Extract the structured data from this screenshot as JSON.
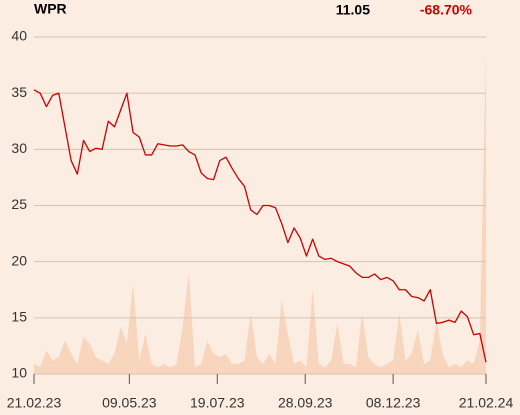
{
  "header": {
    "symbol": "WPR",
    "price": 11.05,
    "change": "-68.70%"
  },
  "chart_data": {
    "type": "line",
    "x": [
      "21.02.23",
      "26.02.23",
      "03.03.23",
      "08.03.23",
      "13.03.23",
      "18.03.23",
      "23.03.23",
      "28.03.23",
      "02.04.23",
      "07.04.23",
      "12.04.23",
      "17.04.23",
      "22.04.23",
      "27.04.23",
      "02.05.23",
      "07.05.23",
      "12.05.23",
      "17.05.23",
      "22.05.23",
      "27.05.23",
      "01.06.23",
      "06.06.23",
      "11.06.23",
      "16.06.23",
      "21.06.23",
      "26.06.23",
      "01.07.23",
      "06.07.23",
      "11.07.23",
      "16.07.23",
      "21.07.23",
      "26.07.23",
      "31.07.23",
      "05.08.23",
      "10.08.23",
      "15.08.23",
      "20.08.23",
      "25.08.23",
      "30.08.23",
      "04.09.23",
      "09.09.23",
      "14.09.23",
      "19.09.23",
      "24.09.23",
      "29.09.23",
      "04.10.23",
      "09.10.23",
      "14.10.23",
      "19.10.23",
      "24.10.23",
      "29.10.23",
      "03.11.23",
      "08.11.23",
      "13.11.23",
      "18.11.23",
      "23.11.23",
      "28.11.23",
      "03.12.23",
      "08.12.23",
      "13.12.23",
      "18.12.23",
      "23.12.23",
      "28.12.23",
      "02.01.24",
      "07.01.24",
      "12.01.24",
      "17.01.24",
      "22.01.24",
      "27.01.24",
      "01.02.24",
      "06.02.24",
      "11.02.24",
      "16.02.24",
      "21.02.24"
    ],
    "series": [
      {
        "color": "#cc0000",
        "values": [
          35.3,
          35,
          33.8,
          34.8,
          35,
          32,
          29,
          27.8,
          30.8,
          29.8,
          30.1,
          30,
          32.5,
          32,
          33.5,
          35,
          31.5,
          31.1,
          29.5,
          29.5,
          30.5,
          30.4,
          30.3,
          30.3,
          30.4,
          29.8,
          29.5,
          27.9,
          27.4,
          27.3,
          29,
          29.3,
          28.3,
          27.4,
          26.7,
          24.6,
          24.2,
          25,
          25,
          24.8,
          23.4,
          21.7,
          23,
          22.1,
          20.5,
          22,
          20.5,
          20.2,
          20.3,
          20,
          19.8,
          19.6,
          19,
          18.6,
          18.6,
          18.9,
          18.4,
          18.6,
          18.3,
          17.5,
          17.5,
          16.9,
          16.8,
          16.5,
          17.5,
          14.5,
          14.6,
          14.8,
          14.6,
          15.6,
          15.1,
          13.5,
          13.6,
          11.05
        ]
      },
      {
        "color": "#f8d6bd",
        "axis": "y2",
        "values": [
          3,
          2,
          7,
          4,
          5,
          10,
          6,
          3,
          11,
          9,
          5,
          4,
          3,
          6,
          14,
          9,
          27,
          4,
          12,
          3,
          2,
          3,
          2,
          3,
          14,
          30,
          2,
          3,
          10,
          6,
          5,
          6,
          3,
          3,
          4,
          18,
          5,
          3,
          6,
          3,
          22,
          12,
          3,
          4,
          2,
          25,
          3,
          2,
          4,
          15,
          3,
          3,
          2,
          18,
          5,
          3,
          2,
          3,
          4,
          18,
          4,
          6,
          13,
          3,
          4,
          16,
          6,
          2,
          3,
          2,
          4,
          3,
          10,
          96
        ]
      }
    ],
    "xlim": [
      "21.02.23",
      "21.02.24"
    ],
    "xticks": [
      "21.02.23",
      "09.05.23",
      "19.07.23",
      "28.09.23",
      "08.12.23",
      "21.02.24"
    ],
    "ylim": [
      10,
      40
    ],
    "yticks": [
      10,
      15,
      20,
      25,
      30,
      35,
      40
    ],
    "y2lim": [
      0,
      100
    ],
    "grid": true
  }
}
